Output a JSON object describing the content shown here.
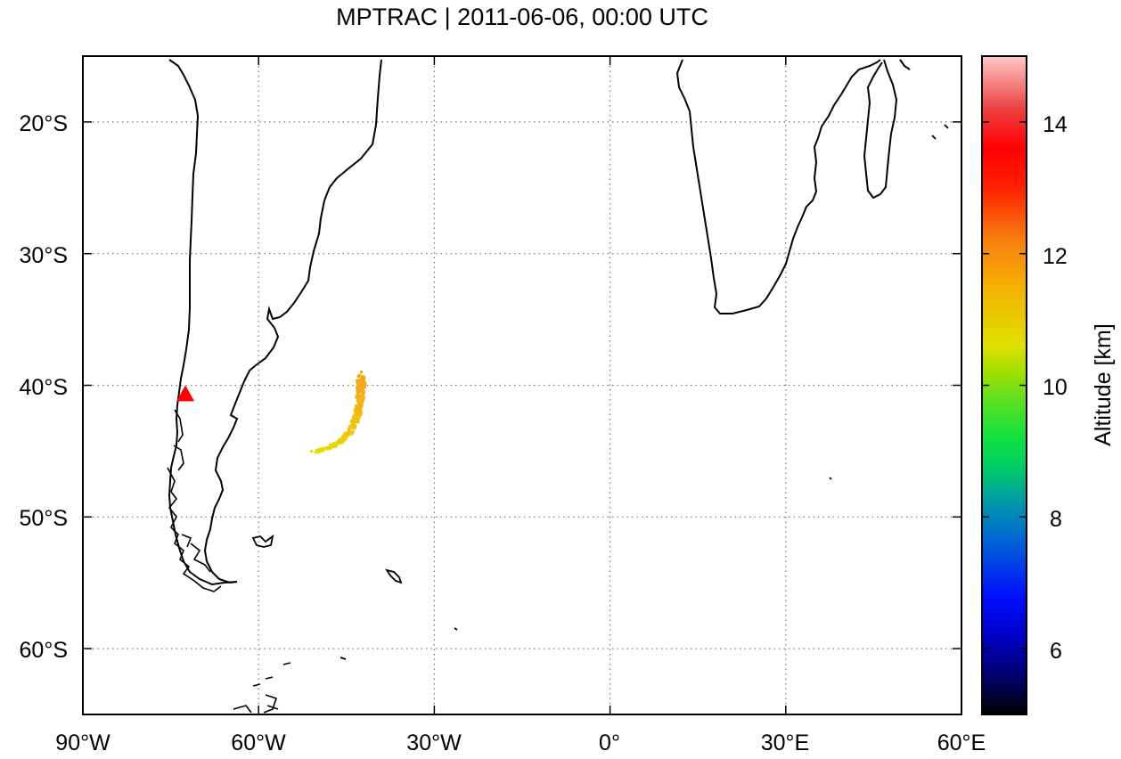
{
  "title": "MPTRAC | 2011-06-06, 00:00 UTC",
  "map": {
    "lon_range": [
      -90,
      60
    ],
    "lat_range": [
      -65,
      -15
    ],
    "x_ticks": [
      {
        "value": -90,
        "label": "90°W"
      },
      {
        "value": -60,
        "label": "60°W"
      },
      {
        "value": -30,
        "label": "30°W"
      },
      {
        "value": 0,
        "label": "0°"
      },
      {
        "value": 30,
        "label": "30°E"
      },
      {
        "value": 60,
        "label": "60°E"
      }
    ],
    "y_ticks": [
      {
        "value": -20,
        "label": "20°S"
      },
      {
        "value": -30,
        "label": "30°S"
      },
      {
        "value": -40,
        "label": "40°S"
      },
      {
        "value": -50,
        "label": "50°S"
      },
      {
        "value": -60,
        "label": "60°S"
      }
    ],
    "grid": "dotted",
    "volcano": {
      "lon": -72.5,
      "lat": -40.6,
      "color": "#ff0000",
      "marker": "triangle"
    },
    "plume_color_range": [
      "#e8e000",
      "#f5a31a"
    ]
  },
  "colorbar": {
    "label": "Altitude [km]",
    "range": [
      5,
      15
    ],
    "ticks": [
      {
        "value": 6,
        "label": "6"
      },
      {
        "value": 8,
        "label": "8"
      },
      {
        "value": 10,
        "label": "10"
      },
      {
        "value": 12,
        "label": "12"
      },
      {
        "value": 14,
        "label": "14"
      }
    ]
  }
}
